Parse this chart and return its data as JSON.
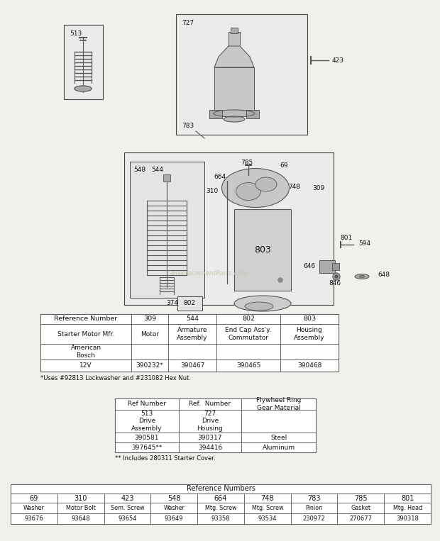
{
  "bg_color": "#f2f0eb",
  "table1": {
    "headers": [
      "Reference Number",
      "309",
      "544",
      "802",
      "803"
    ],
    "row1_left": "Starter Motor Mfr.",
    "row1_cols": [
      "Motor",
      "Armature\nAssembly",
      "End Cap Ass'y.\nCommutator",
      "Housing\nAssembly"
    ],
    "row2": [
      "American\nBosch",
      "",
      "",
      "",
      ""
    ],
    "row3": [
      "12V",
      "390232*",
      "390467",
      "390465",
      "390468"
    ],
    "footnote": "*Uses #92813 Lockwasher and #231082 Hex Nut."
  },
  "table2": {
    "col1_header": "Ref Number",
    "col2_header": "Ref.  Number",
    "col3_header": "Flywheel Ring\nGear Material",
    "row1": [
      "513\nDrive\nAssembly",
      "727\nDrive\nHousing",
      ""
    ],
    "row2": [
      "390581",
      "390317",
      "Steel"
    ],
    "row3": [
      "397645**",
      "394416",
      "Aluminum"
    ],
    "footnote": "** Includes 280311 Starter Cover."
  },
  "table3": {
    "header": "Reference Numbers",
    "cols": [
      "69",
      "310",
      "423",
      "548",
      "664",
      "748",
      "783",
      "785",
      "801"
    ],
    "row1": [
      "Washer",
      "Motor Bolt",
      "Sem. Screw",
      "Washer",
      "Mtg. Screw",
      "Mtg. Screw",
      "Pinion",
      "Gasket",
      "Mtg. Head"
    ],
    "row2": [
      "93676",
      "93648",
      "93654",
      "93649",
      "93358",
      "93534",
      "230972",
      "270677",
      "390318"
    ]
  },
  "watermark": "eReplacementParts.com"
}
